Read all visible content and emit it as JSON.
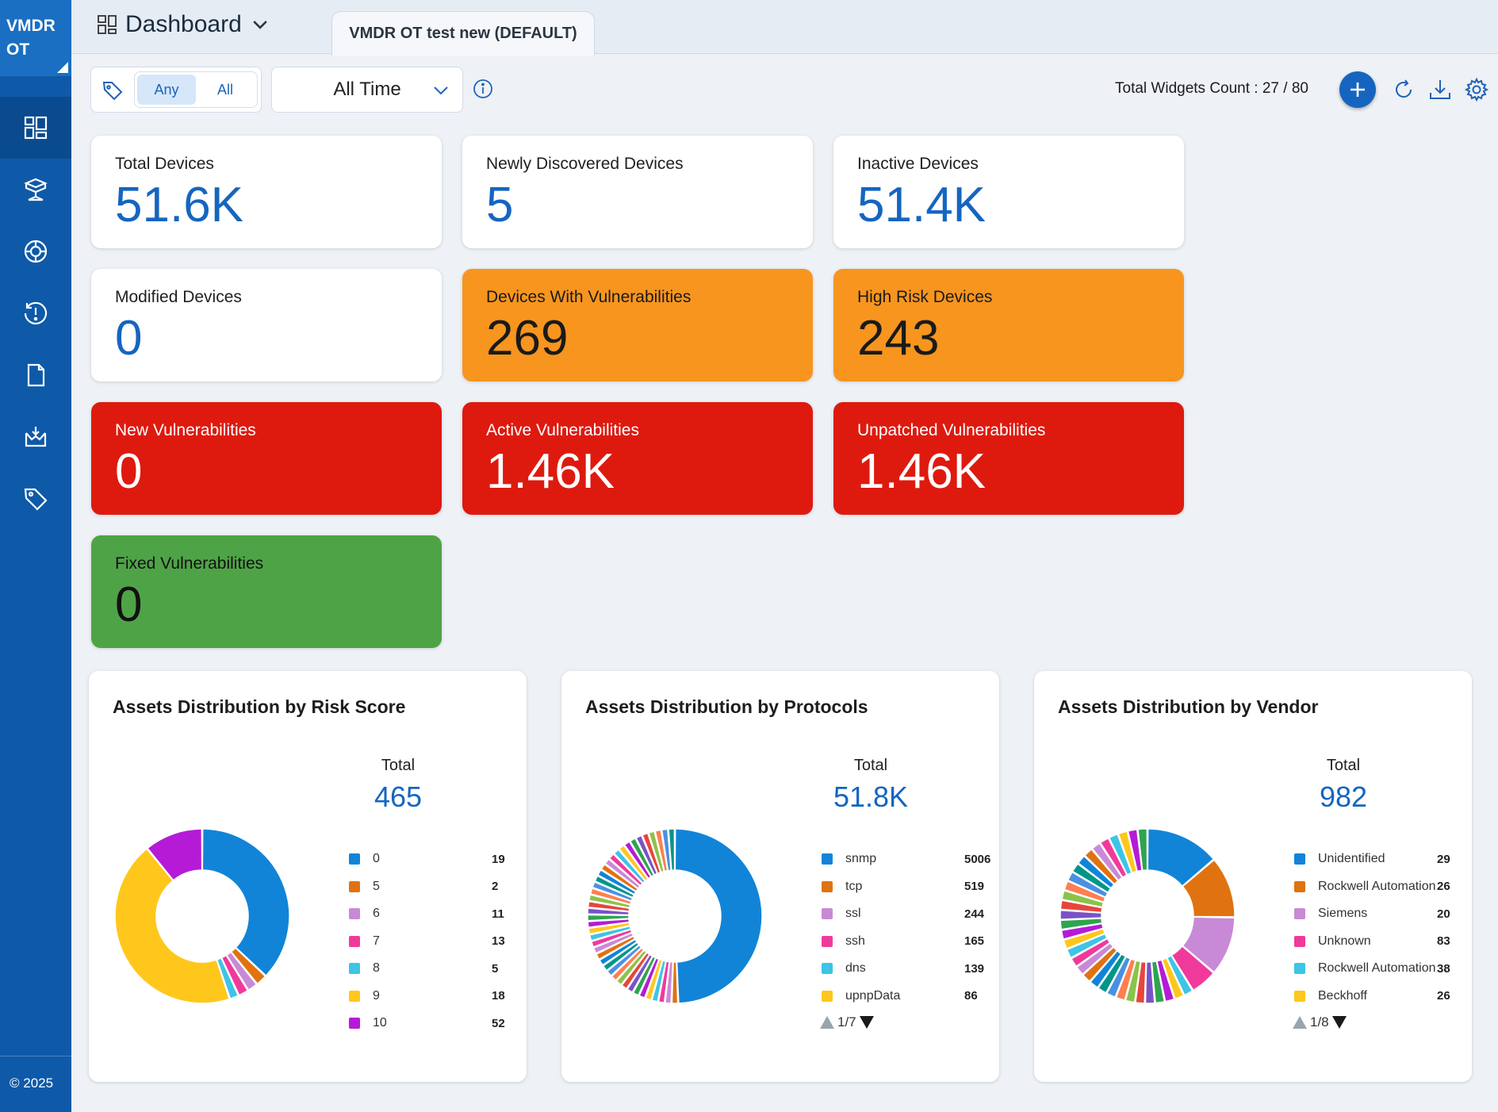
{
  "app": {
    "brand": "VMDR OT",
    "copyright": "© 2025"
  },
  "header": {
    "title": "Dashboard",
    "tab": "VMDR OT test new (DEFAULT)"
  },
  "filters": {
    "any": "Any",
    "all": "All",
    "time": "All Time",
    "widgets_count": "Total Widgets Count : 27 / 80"
  },
  "sidebar": {
    "items": [
      {
        "icon": "dashboard-icon"
      },
      {
        "icon": "inventory-icon"
      },
      {
        "icon": "network-icon"
      },
      {
        "icon": "alert-history-icon"
      },
      {
        "icon": "report-icon"
      },
      {
        "icon": "download-icon"
      },
      {
        "icon": "tag-icon"
      }
    ]
  },
  "cards": [
    {
      "label": "Total Devices",
      "value": "51.6K",
      "theme": "white"
    },
    {
      "label": "Newly Discovered Devices",
      "value": "5",
      "theme": "white"
    },
    {
      "label": "Inactive Devices",
      "value": "51.4K",
      "theme": "white"
    },
    {
      "label": "Modified Devices",
      "value": "0",
      "theme": "white"
    },
    {
      "label": "Devices With Vulnerabilities",
      "value": "269",
      "theme": "orange"
    },
    {
      "label": "High Risk Devices",
      "value": "243",
      "theme": "orange"
    },
    {
      "label": "New Vulnerabilities",
      "value": "0",
      "theme": "red"
    },
    {
      "label": "Active Vulnerabilities",
      "value": "1.46K",
      "theme": "red"
    },
    {
      "label": "Unpatched Vulnerabilities",
      "value": "1.46K",
      "theme": "red"
    },
    {
      "label": "Fixed Vulnerabilities",
      "value": "0",
      "theme": "green"
    }
  ],
  "colors": {
    "brand": "#0e5aa8",
    "accent": "#1565c0",
    "orange": "#f7951f",
    "red": "#de1a0f",
    "green": "#4fa347",
    "palette": [
      "#1184d8",
      "#e07210",
      "#c88ad6",
      "#f03a9b",
      "#3ec4e6",
      "#ffc71c",
      "#b51bd6",
      "#2ea44f",
      "#7a52c7",
      "#e8453c",
      "#8bc34a",
      "#ff7f50",
      "#4a90e2",
      "#009688"
    ]
  },
  "chart_data": [
    {
      "type": "pie",
      "title": "Assets Distribution by Risk Score",
      "total_label": "Total",
      "total_value": "465",
      "series": [
        {
          "name": "0",
          "value": 19,
          "display": "19"
        },
        {
          "name": "5",
          "value": 2,
          "display": "2"
        },
        {
          "name": "6",
          "value": 11,
          "display": "11"
        },
        {
          "name": "7",
          "value": 13,
          "display": "13"
        },
        {
          "name": "8",
          "value": 5,
          "display": "5"
        },
        {
          "name": "9",
          "value": 18,
          "display": "18"
        },
        {
          "name": "10",
          "value": 52,
          "display": "52"
        }
      ],
      "slices": [
        170,
        10,
        9,
        9,
        8,
        203,
        50
      ],
      "pager": ""
    },
    {
      "type": "pie",
      "title": "Assets Distribution by Protocols",
      "total_label": "Total",
      "total_value": "51.8K",
      "series": [
        {
          "name": "snmp",
          "value": 5006,
          "display": "5006"
        },
        {
          "name": "tcp",
          "value": 519,
          "display": "519"
        },
        {
          "name": "ssl",
          "value": 244,
          "display": "244"
        },
        {
          "name": "ssh",
          "value": 165,
          "display": "165"
        },
        {
          "name": "dns",
          "value": 139,
          "display": "139"
        },
        {
          "name": "upnpData",
          "value": 86,
          "display": "86"
        }
      ],
      "slices": [
        200,
        5,
        5,
        5,
        5,
        5,
        5,
        5,
        5,
        5,
        5,
        5,
        5,
        5,
        5,
        5,
        5,
        5,
        5,
        5,
        5,
        5,
        5,
        5,
        5,
        5,
        5,
        5,
        5,
        5,
        5,
        5,
        5,
        5,
        5,
        5,
        5,
        5,
        5,
        5,
        5,
        5
      ],
      "pager": "1/7"
    },
    {
      "type": "pie",
      "title": "Assets Distribution by Vendor",
      "total_label": "Total",
      "total_value": "982",
      "series": [
        {
          "name": "Unidentified",
          "value": 29,
          "display": "29"
        },
        {
          "name": "Rockwell Automation",
          "value": 26,
          "display": "26"
        },
        {
          "name": "Siemens",
          "value": 20,
          "display": "20"
        },
        {
          "name": "Unknown",
          "value": 83,
          "display": "83"
        },
        {
          "name": "Rockwell Automation…",
          "value": 38,
          "display": "38"
        },
        {
          "name": "Beckhoff",
          "value": 26,
          "display": "26"
        }
      ],
      "slices": [
        60,
        50,
        48,
        22,
        8,
        8,
        8,
        8,
        8,
        8,
        8,
        8,
        8,
        8,
        8,
        8,
        8,
        8,
        8,
        8,
        8,
        8,
        8,
        8,
        8,
        8,
        8,
        8,
        8,
        8,
        8,
        8,
        8,
        8,
        8,
        8
      ],
      "pager": "1/8"
    }
  ]
}
